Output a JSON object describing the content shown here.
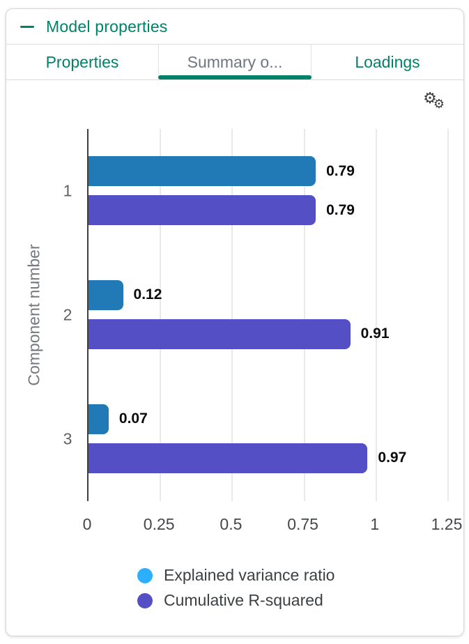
{
  "panel": {
    "title": "Model properties",
    "collapse_icon": "minus-icon"
  },
  "tabs": [
    {
      "label": "Properties",
      "active": false
    },
    {
      "label": "Summary o...",
      "active": true
    },
    {
      "label": "Loadings",
      "active": false
    }
  ],
  "icons": {
    "gear_glyph": "⚙"
  },
  "colors": {
    "accent_teal": "#00816a",
    "active_tab_text": "#6f7680",
    "axis_line": "#3f3f3f",
    "gridline": "#e9e9e9",
    "bar_blue": "#2179b5",
    "bar_purple": "#544fc5",
    "legend_blue": "#2caffe",
    "legend_purple": "#544fc5"
  },
  "chart_data": {
    "type": "bar",
    "orientation": "horizontal",
    "title": "",
    "ylabel": "Component number",
    "xlabel": "",
    "categories": [
      "1",
      "2",
      "3"
    ],
    "series": [
      {
        "name": "Explained variance ratio",
        "color": "#2179b5",
        "legend_color": "#2caffe",
        "values": [
          0.79,
          0.12,
          0.07
        ]
      },
      {
        "name": "Cumulative R-squared",
        "color": "#544fc5",
        "legend_color": "#544fc5",
        "values": [
          0.79,
          0.91,
          0.97
        ]
      }
    ],
    "data_labels": [
      [
        "0.79",
        "0.12",
        "0.07"
      ],
      [
        "0.79",
        "0.91",
        "0.97"
      ]
    ],
    "xticks": [
      "0",
      "0.25",
      "0.5",
      "0.75",
      "1",
      "1.25"
    ],
    "xlim": [
      0,
      1.25
    ],
    "grid": true,
    "legend_position": "bottom"
  }
}
